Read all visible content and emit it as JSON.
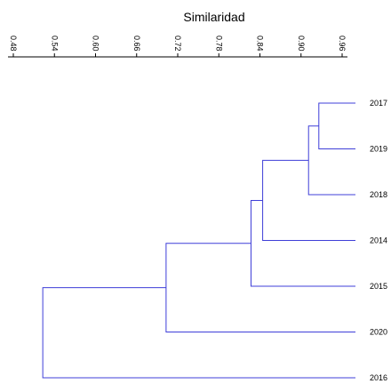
{
  "chart_data": {
    "type": "dendrogram",
    "title": "",
    "xlabel": "Similaridad",
    "xlim": [
      0.48,
      1.0
    ],
    "xticks": [
      0.48,
      0.54,
      0.6,
      0.66,
      0.72,
      0.78,
      0.84,
      0.9,
      0.96
    ],
    "xtick_labels": [
      "0.48",
      "0.54",
      "0.60",
      "0.66",
      "0.72",
      "0.78",
      "0.84",
      "0.90",
      "0.96"
    ],
    "leaves": [
      "2017",
      "2019",
      "2018",
      "2014",
      "2015",
      "2020",
      "2016"
    ],
    "merges": [
      {
        "left": "2017",
        "right": "2019",
        "similarity": 0.926
      },
      {
        "left": "2017+2019",
        "right": "2018",
        "similarity": 0.911
      },
      {
        "left": "2017+2019+2018",
        "right": "2014",
        "similarity": 0.844
      },
      {
        "left": "2017+2019+2018+2014",
        "right": "2015",
        "similarity": 0.827
      },
      {
        "left": "2017+2019+2018+2014+2015",
        "right": "2020",
        "similarity": 0.703
      },
      {
        "left": "2017+2019+2018+2014+2015+2020",
        "right": "2016",
        "similarity": 0.523
      }
    ],
    "line_color": "#3f3fd8",
    "grid": false,
    "legend": "none"
  }
}
